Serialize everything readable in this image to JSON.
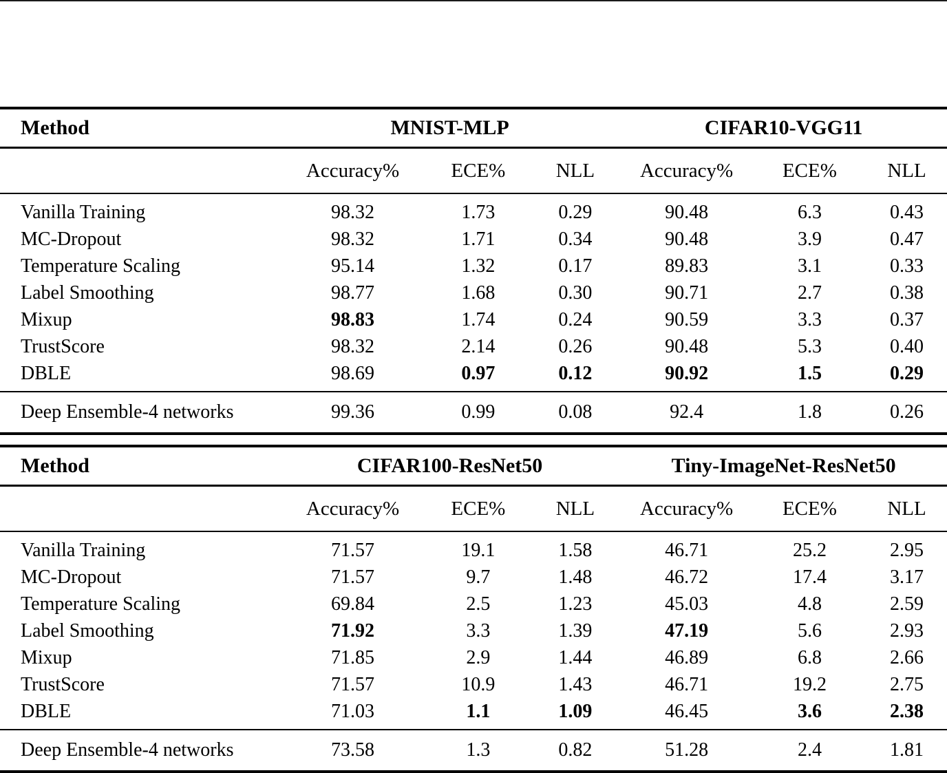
{
  "tables": [
    {
      "method_header": "Method",
      "groups": [
        "MNIST-MLP",
        "CIFAR10-VGG11"
      ],
      "metrics": [
        "Accuracy%",
        "ECE%",
        "NLL"
      ],
      "rows": [
        {
          "method": "Vanilla Training",
          "values": [
            "98.32",
            "1.73",
            "0.29",
            "90.48",
            "6.3",
            "0.43"
          ],
          "bold": []
        },
        {
          "method": "MC-Dropout",
          "values": [
            "98.32",
            "1.71",
            "0.34",
            "90.48",
            "3.9",
            "0.47"
          ],
          "bold": []
        },
        {
          "method": "Temperature Scaling",
          "values": [
            "95.14",
            "1.32",
            "0.17",
            "89.83",
            "3.1",
            "0.33"
          ],
          "bold": []
        },
        {
          "method": "Label Smoothing",
          "values": [
            "98.77",
            "1.68",
            "0.30",
            "90.71",
            "2.7",
            "0.38"
          ],
          "bold": []
        },
        {
          "method": "Mixup",
          "values": [
            "98.83",
            "1.74",
            "0.24",
            "90.59",
            "3.3",
            "0.37"
          ],
          "bold": [
            0
          ]
        },
        {
          "method": "TrustScore",
          "values": [
            "98.32",
            "2.14",
            "0.26",
            "90.48",
            "5.3",
            "0.40"
          ],
          "bold": []
        },
        {
          "method": "DBLE",
          "values": [
            "98.69",
            "0.97",
            "0.12",
            "90.92",
            "1.5",
            "0.29"
          ],
          "bold": [
            1,
            2,
            3,
            4,
            5
          ]
        }
      ],
      "footer": {
        "method": "Deep Ensemble-4 networks",
        "values": [
          "99.36",
          "0.99",
          "0.08",
          "92.4",
          "1.8",
          "0.26"
        ],
        "bold": []
      }
    },
    {
      "method_header": "Method",
      "groups": [
        "CIFAR100-ResNet50",
        "Tiny-ImageNet-ResNet50"
      ],
      "metrics": [
        "Accuracy%",
        "ECE%",
        "NLL"
      ],
      "rows": [
        {
          "method": "Vanilla Training",
          "values": [
            "71.57",
            "19.1",
            "1.58",
            "46.71",
            "25.2",
            "2.95"
          ],
          "bold": []
        },
        {
          "method": "MC-Dropout",
          "values": [
            "71.57",
            "9.7",
            "1.48",
            "46.72",
            "17.4",
            "3.17"
          ],
          "bold": []
        },
        {
          "method": "Temperature Scaling",
          "values": [
            "69.84",
            "2.5",
            "1.23",
            "45.03",
            "4.8",
            "2.59"
          ],
          "bold": []
        },
        {
          "method": "Label Smoothing",
          "values": [
            "71.92",
            "3.3",
            "1.39",
            "47.19",
            "5.6",
            "2.93"
          ],
          "bold": [
            0,
            3
          ]
        },
        {
          "method": "Mixup",
          "values": [
            "71.85",
            "2.9",
            "1.44",
            "46.89",
            "6.8",
            "2.66"
          ],
          "bold": []
        },
        {
          "method": "TrustScore",
          "values": [
            "71.57",
            "10.9",
            "1.43",
            "46.71",
            "19.2",
            "2.75"
          ],
          "bold": []
        },
        {
          "method": "DBLE",
          "values": [
            "71.03",
            "1.1",
            "1.09",
            "46.45",
            "3.6",
            "2.38"
          ],
          "bold": [
            1,
            2,
            4,
            5
          ]
        }
      ],
      "footer": {
        "method": "Deep Ensemble-4 networks",
        "values": [
          "73.58",
          "1.3",
          "0.82",
          "51.28",
          "2.4",
          "1.81"
        ],
        "bold": []
      }
    }
  ]
}
